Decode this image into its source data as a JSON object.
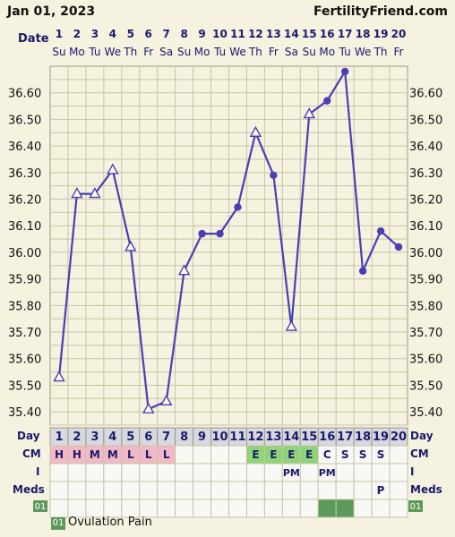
{
  "header": {
    "date": "Jan 01, 2023",
    "site": "FertilityFriend.com"
  },
  "labels": {
    "date_row": "Date",
    "day_row": "Day",
    "cm_row": "CM",
    "i_row": "I",
    "meds_row": "Meds",
    "ov_badge": "01"
  },
  "legend": {
    "badge": "01",
    "text": "Ovulation Pain"
  },
  "colors": {
    "line": "#4a3fb5",
    "grid": "#c8c4a8",
    "background": "#f5f2df",
    "cm_pink": "#f2b8c6",
    "cm_green": "#8fd47a",
    "ov_green": "#5c9a5c",
    "day_header": "#d8d8e0"
  },
  "chart_data": {
    "type": "line",
    "title": "",
    "x": [
      1,
      2,
      3,
      4,
      5,
      6,
      7,
      8,
      9,
      10,
      11,
      12,
      13,
      14,
      15,
      16,
      17,
      18,
      19,
      20
    ],
    "dates": [
      "1",
      "2",
      "3",
      "4",
      "5",
      "6",
      "7",
      "8",
      "9",
      "10",
      "11",
      "12",
      "13",
      "14",
      "15",
      "16",
      "17",
      "18",
      "19",
      "20"
    ],
    "weekdays": [
      "Su",
      "Mo",
      "Tu",
      "We",
      "Th",
      "Fr",
      "Sa",
      "Su",
      "Mo",
      "Tu",
      "We",
      "Th",
      "Fr",
      "Sa",
      "Su",
      "Mo",
      "Tu",
      "We",
      "Th",
      "Fr"
    ],
    "series": [
      {
        "values": [
          35.53,
          36.22,
          36.22,
          36.31,
          36.02,
          35.41,
          35.44,
          35.93,
          36.07,
          36.07,
          36.17,
          36.45,
          36.29,
          35.72,
          36.52,
          36.57,
          36.68,
          35.93,
          36.08,
          36.02
        ],
        "markers": [
          "tri",
          "tri",
          "tri",
          "tri",
          "tri",
          "tri",
          "tri",
          "tri",
          "dot",
          "dot",
          "dot",
          "tri",
          "dot",
          "tri",
          "tri",
          "dot",
          "dot",
          "dot",
          "dot",
          "dot"
        ]
      }
    ],
    "ylim": [
      35.35,
      36.7
    ],
    "yticks": [
      "35.40",
      "35.50",
      "35.60",
      "35.70",
      "35.80",
      "35.90",
      "36.00",
      "36.10",
      "36.20",
      "36.30",
      "36.40",
      "36.50",
      "36.60"
    ],
    "grid": true,
    "rows": {
      "day": [
        "1",
        "2",
        "3",
        "4",
        "5",
        "6",
        "7",
        "8",
        "9",
        "10",
        "11",
        "12",
        "13",
        "14",
        "15",
        "16",
        "17",
        "18",
        "19",
        "20"
      ],
      "cm": [
        "H",
        "H",
        "M",
        "M",
        "L",
        "L",
        "L",
        "",
        "",
        "",
        "",
        "E",
        "E",
        "E",
        "E",
        "C",
        "S",
        "S",
        "S",
        ""
      ],
      "i": [
        "",
        "",
        "",
        "",
        "",
        "",
        "",
        "",
        "",
        "",
        "",
        "",
        "",
        "PM",
        "",
        "PM",
        "",
        "",
        "",
        ""
      ],
      "meds": [
        "",
        "",
        "",
        "",
        "",
        "",
        "",
        "",
        "",
        "",
        "",
        "",
        "",
        "",
        "",
        "",
        "",
        "",
        "P",
        ""
      ],
      "ovulation_pain": [
        false,
        false,
        false,
        false,
        false,
        false,
        false,
        false,
        false,
        false,
        false,
        false,
        false,
        false,
        false,
        true,
        true,
        false,
        false,
        false
      ]
    }
  }
}
